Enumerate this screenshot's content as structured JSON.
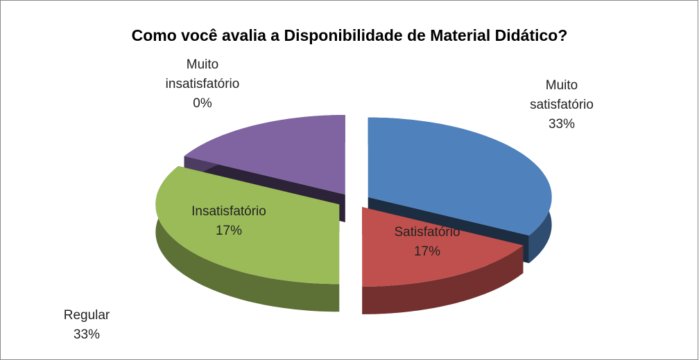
{
  "chart_data": {
    "type": "pie",
    "title": "Como você avalia a Disponibilidade de Material Didático?",
    "categories": [
      "Muito satisfatório",
      "Satisfatório",
      "Regular",
      "Insatisfatório",
      "Muito insatisfatório"
    ],
    "values": [
      33,
      17,
      33,
      17,
      0
    ],
    "value_labels": [
      "33%",
      "17%",
      "33%",
      "17%",
      "0%"
    ],
    "colors": [
      "#4f81bd",
      "#c0504d",
      "#9bbb59",
      "#8064a2",
      "#4bacc6"
    ]
  }
}
